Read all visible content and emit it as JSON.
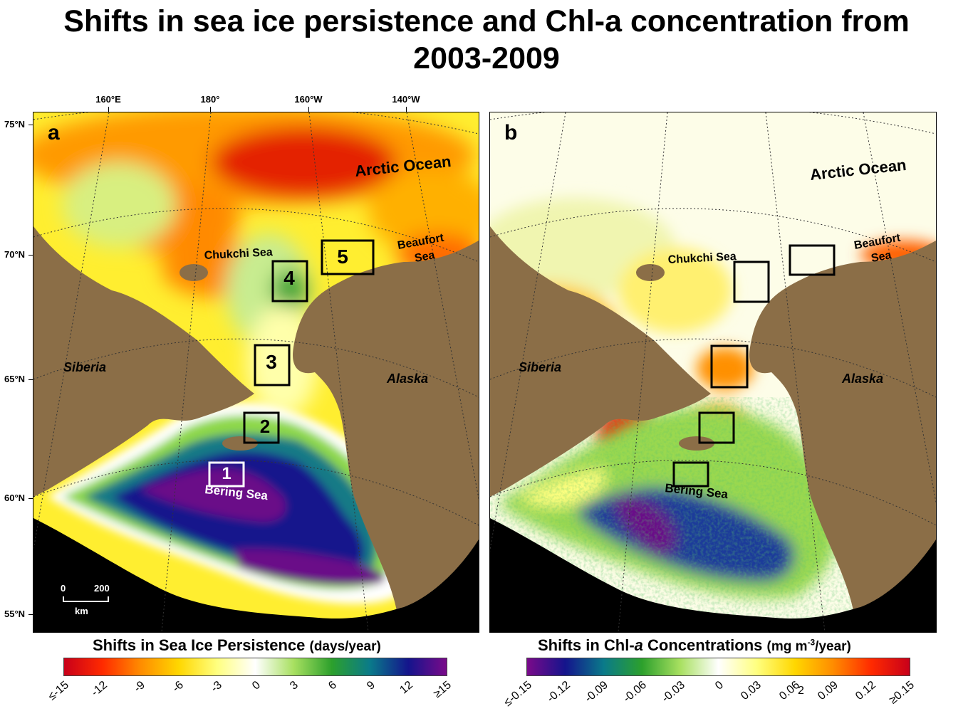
{
  "title_line1": "Shifts in sea ice persistence and Chl-a concentration from",
  "title_line2": "2003-2009",
  "longitude_labels": [
    "160°E",
    "180°",
    "160°W",
    "140°W"
  ],
  "latitude_labels": [
    "75°N",
    "70°N",
    "65°N",
    "60°N",
    "55°N"
  ],
  "panel_a": {
    "letter": "a",
    "labels": {
      "arctic": "Arctic Ocean",
      "chukchi": "Chukchi Sea",
      "beaufort1": "Beaufort",
      "beaufort2": "Sea",
      "siberia": "Siberia",
      "alaska": "Alaska",
      "bering": "Bering Sea"
    },
    "boxes": [
      "1",
      "2",
      "3",
      "4",
      "5"
    ],
    "scale": {
      "zero": "0",
      "max": "200",
      "unit": "km"
    }
  },
  "panel_b": {
    "letter": "b",
    "labels": {
      "arctic": "Arctic Ocean",
      "chukchi": "Chukchi Sea",
      "beaufort1": "Beaufort",
      "beaufort2": "Sea",
      "siberia": "Siberia",
      "alaska": "Alaska",
      "bering": "Bering Sea"
    }
  },
  "colorbar_a": {
    "title": "Shifts in Sea Ice Persistence",
    "unit": "(days/year)",
    "ticks": [
      "≤-15",
      "-12",
      "-9",
      "-6",
      "-3",
      "0",
      "3",
      "6",
      "9",
      "12",
      "≥15"
    ],
    "colors": [
      "#c8001a",
      "#ff2a00",
      "#ff8c00",
      "#ffd700",
      "#ffff80",
      "#ffffff",
      "#a8e060",
      "#2ca02c",
      "#0a7a8a",
      "#14148c",
      "#7a0a8a"
    ]
  },
  "colorbar_b": {
    "title_prefix": "Shifts in Chl-",
    "title_italic": "a",
    "title_suffix": " Concentrations",
    "unit": "(mg m",
    "unit_sup": "-3",
    "unit_end": "/year)",
    "ticks": [
      "≤-0.15",
      "-0.12",
      "-0.09",
      "-0.06",
      "-0.03",
      "0",
      "0.03",
      "0.06",
      "0.09",
      "0.12",
      "≥0.15"
    ],
    "stray_tick": "2",
    "colors": [
      "#7a0a8a",
      "#14148c",
      "#0a7a8a",
      "#2ca02c",
      "#a8e060",
      "#ffffff",
      "#ffff80",
      "#ffd700",
      "#ff8c00",
      "#ff2a00",
      "#c8001a"
    ]
  },
  "colors": {
    "land": "#8b6e47",
    "black_land": "#000000",
    "box_black": "#000000",
    "box_white": "#ffffff"
  }
}
